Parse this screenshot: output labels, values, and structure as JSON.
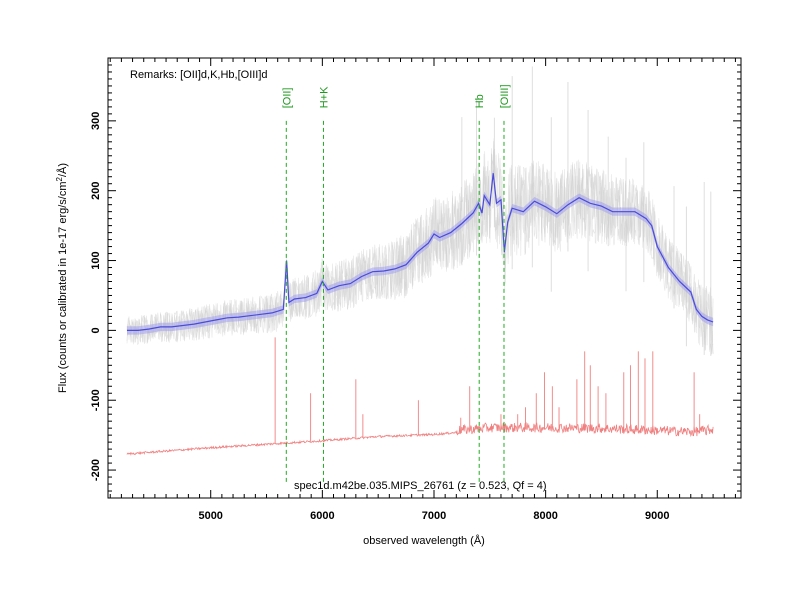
{
  "chart_data": {
    "type": "line",
    "xlabel": "observed wavelength (Å)",
    "ylabel": "Flux (counts or calibrated in 1e-17 erg/s/cm²/Å)",
    "ylabel_main": "Flux (counts or calibrated in 1e-17 erg/s/cm",
    "ylabel_sup": "2",
    "ylabel_tail": "/Å)",
    "xlim": [
      4080,
      9750
    ],
    "ylim": [
      -240,
      390
    ],
    "xticks": [
      5000,
      6000,
      7000,
      8000,
      9000
    ],
    "xtick_labels": [
      "5000",
      "6000",
      "7000",
      "8000",
      "9000"
    ],
    "yticks": [
      -200,
      -100,
      0,
      100,
      200,
      300
    ],
    "ytick_labels": [
      "-200",
      "-100",
      "0",
      "100",
      "200",
      "300"
    ],
    "remarks": "Remarks: [OII]d,K,Hb,[OIII]d",
    "caption": "spec1d.m42be.035.MIPS_26761 (z = 0.523, Qf = 4)",
    "grid": false,
    "lines": [
      {
        "label": "[OII]",
        "x": 5677
      },
      {
        "label": "H+K",
        "x": 6010
      },
      {
        "label": "Hb",
        "x": 7405
      },
      {
        "label": "[OIII]",
        "x": 7627
      }
    ],
    "series": [
      {
        "role": "smoothed",
        "color": "#4b4bd8",
        "x": [
          4250,
          4350,
          4450,
          4550,
          4650,
          4750,
          4850,
          4950,
          5050,
          5150,
          5250,
          5350,
          5450,
          5550,
          5650,
          5680,
          5700,
          5750,
          5850,
          5950,
          6000,
          6050,
          6150,
          6250,
          6350,
          6450,
          6550,
          6650,
          6750,
          6850,
          6950,
          7000,
          7050,
          7150,
          7250,
          7350,
          7400,
          7430,
          7450,
          7500,
          7530,
          7560,
          7600,
          7630,
          7660,
          7700,
          7800,
          7900,
          8000,
          8100,
          8200,
          8300,
          8400,
          8500,
          8600,
          8700,
          8800,
          8900,
          8950,
          9000,
          9100,
          9200,
          9300,
          9350,
          9400,
          9450,
          9500
        ],
        "y": [
          0,
          0,
          2,
          5,
          5,
          7,
          9,
          12,
          15,
          18,
          19,
          21,
          23,
          25,
          30,
          100,
          40,
          45,
          47,
          53,
          70,
          58,
          64,
          67,
          77,
          84,
          85,
          88,
          94,
          112,
          125,
          138,
          133,
          140,
          153,
          168,
          182,
          168,
          193,
          180,
          225,
          182,
          187,
          112,
          155,
          175,
          170,
          185,
          177,
          167,
          180,
          190,
          182,
          178,
          170,
          170,
          170,
          160,
          150,
          120,
          90,
          70,
          55,
          30,
          20,
          15,
          12
        ]
      },
      {
        "role": "sky",
        "color": "#f08080",
        "x": [
          4250,
          4500,
          5000,
          5500,
          6000,
          6500,
          7000,
          7500,
          8000,
          8500,
          9000,
          9300,
          9500
        ],
        "y": [
          -177,
          -174,
          -168,
          -163,
          -158,
          -152,
          -149,
          -142,
          -142,
          -143,
          -146,
          -148,
          -145
        ]
      }
    ],
    "sky_spikes": [
      [
        5577,
        -10
      ],
      [
        5895,
        -90
      ],
      [
        6300,
        -70
      ],
      [
        6363,
        -120
      ],
      [
        6860,
        -100
      ],
      [
        7240,
        -125
      ],
      [
        7320,
        -80
      ],
      [
        7600,
        -120
      ],
      [
        7750,
        -120
      ],
      [
        7820,
        -110
      ],
      [
        7916,
        -90
      ],
      [
        7990,
        -60
      ],
      [
        8060,
        -80
      ],
      [
        8120,
        -110
      ],
      [
        8280,
        -70
      ],
      [
        8350,
        -30
      ],
      [
        8400,
        -50
      ],
      [
        8470,
        -80
      ],
      [
        8540,
        -90
      ],
      [
        8700,
        -60
      ],
      [
        8760,
        -50
      ],
      [
        8830,
        -30
      ],
      [
        8890,
        -40
      ],
      [
        8960,
        -30
      ],
      [
        9330,
        -60
      ],
      [
        9380,
        -120
      ],
      [
        9440,
        -150
      ]
    ],
    "gray_band": {
      "color": "#cfcfcf",
      "x": [
        4250,
        4500,
        5000,
        5500,
        6000,
        6500,
        7000,
        7300,
        7600,
        8000,
        8500,
        9000,
        9300,
        9500
      ],
      "half_width": [
        20,
        22,
        25,
        28,
        35,
        40,
        55,
        60,
        70,
        60,
        55,
        45,
        45,
        50
      ]
    }
  }
}
